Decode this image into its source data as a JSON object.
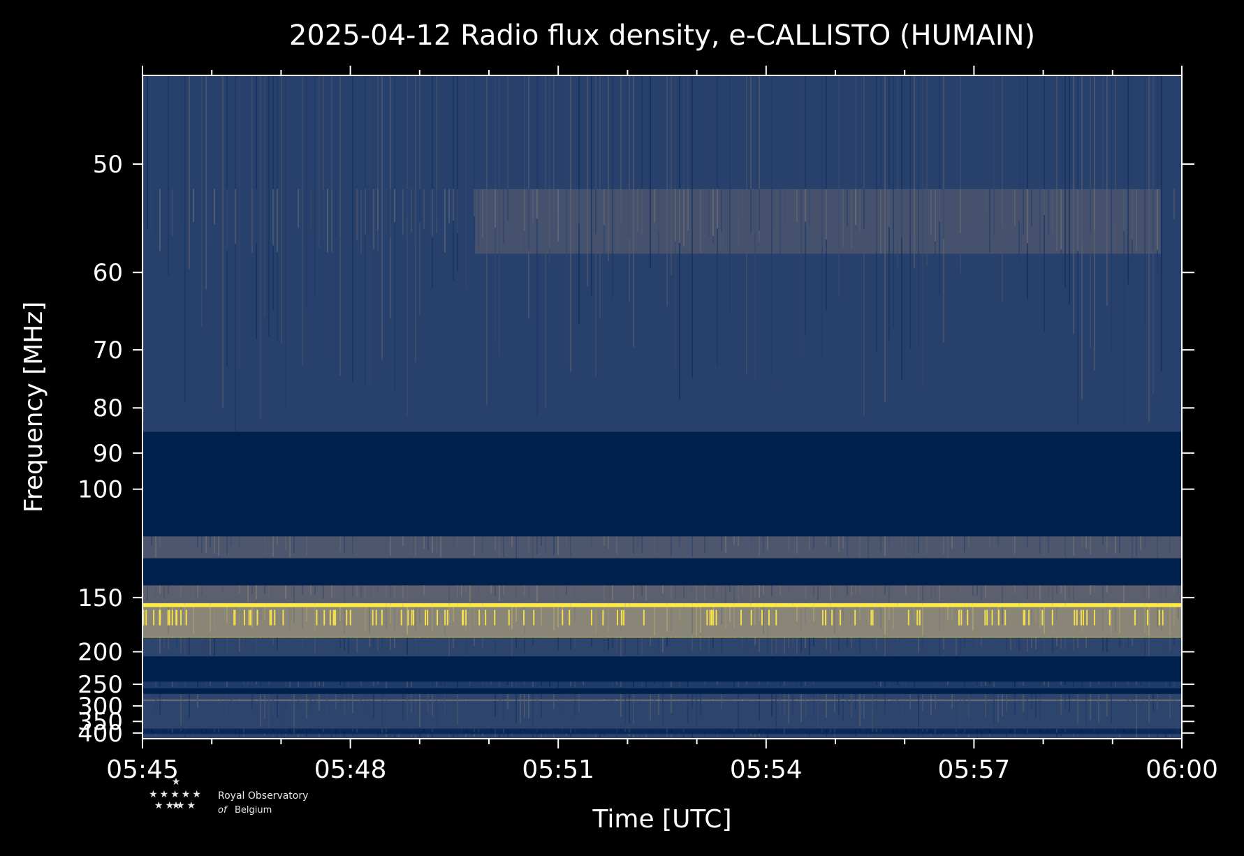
{
  "chart_data": {
    "type": "heatmap",
    "title": "2025-04-12 Radio flux density, e-CALLISTO (HUMAIN)",
    "xlabel": "Time [UTC]",
    "ylabel": "Frequency [MHz]",
    "x_ticks": [
      "05:45",
      "05:48",
      "05:51",
      "05:54",
      "05:57",
      "06:00"
    ],
    "x_range_minutes": [
      0,
      15
    ],
    "y_ticks": [
      50,
      60,
      70,
      80,
      90,
      100,
      150,
      200,
      250,
      300,
      350,
      400
    ],
    "y_range_mhz": [
      44,
      430
    ],
    "y_scale": "reciprocal (plasma-frequency style), frequency increasing downward",
    "colormap": [
      "#00204d",
      "#233e6c",
      "#575c6d",
      "#7c7b78",
      "#a69d75",
      "#d3c164",
      "#ffe945"
    ],
    "bands": [
      {
        "f_low": 44,
        "f_high": 85,
        "level": 0.18
      },
      {
        "f_low": 52,
        "f_high": 58,
        "level": 0.28,
        "t_start": 4.8,
        "t_end": 14.7
      },
      {
        "f_low": 85,
        "f_high": 117,
        "level": 0.0
      },
      {
        "f_low": 117,
        "f_high": 127,
        "level": 0.3
      },
      {
        "f_low": 127,
        "f_high": 142,
        "level": 0.0
      },
      {
        "f_low": 142,
        "f_high": 154,
        "level": 0.35
      },
      {
        "f_low": 154,
        "f_high": 157,
        "level": 1.0
      },
      {
        "f_low": 157,
        "f_high": 183,
        "level": 0.55
      },
      {
        "f_low": 183,
        "f_high": 184,
        "level": 0.85
      },
      {
        "f_low": 184,
        "f_high": 206,
        "level": 0.2
      },
      {
        "f_low": 206,
        "f_high": 245,
        "level": 0.0
      },
      {
        "f_low": 245,
        "f_high": 258,
        "level": 0.15
      },
      {
        "f_low": 258,
        "f_high": 270,
        "level": 0.0
      },
      {
        "f_low": 270,
        "f_high": 380,
        "level": 0.2
      },
      {
        "f_low": 283,
        "f_high": 287,
        "level": 0.4
      },
      {
        "f_low": 380,
        "f_high": 405,
        "level": 0.05
      },
      {
        "f_low": 405,
        "f_high": 430,
        "level": 0.2
      }
    ]
  },
  "logo": {
    "line1": "Royal Observatory",
    "line2_italic": "of",
    "line2": "Belgium"
  }
}
